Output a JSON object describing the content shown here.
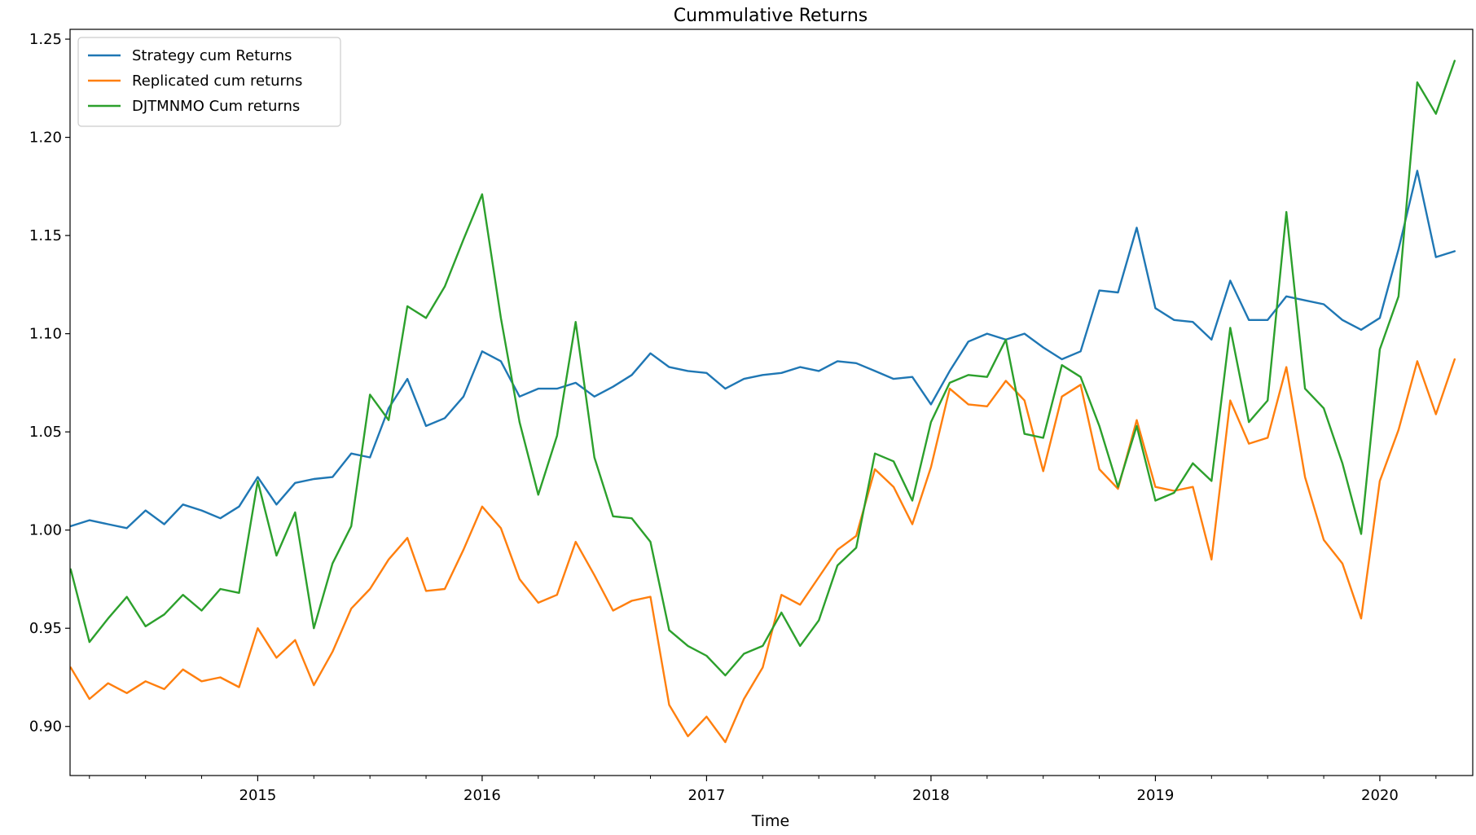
{
  "chart_data": {
    "type": "line",
    "title": "Cummulative Returns",
    "xlabel": "Time",
    "ylabel": "",
    "ylim": [
      0.875,
      1.255
    ],
    "xlim": [
      "2014-02-28",
      "2020-05-31"
    ],
    "yticks": [
      "0.90",
      "0.95",
      "1.00",
      "1.05",
      "1.10",
      "1.15",
      "1.20",
      "1.25"
    ],
    "xticks": [
      "2015",
      "2016",
      "2017",
      "2018",
      "2019",
      "2020"
    ],
    "grid": false,
    "legend_position": "top-left",
    "x": [
      "2014-02",
      "2014-03",
      "2014-04",
      "2014-05",
      "2014-06",
      "2014-07",
      "2014-08",
      "2014-09",
      "2014-10",
      "2014-11",
      "2014-12",
      "2015-01",
      "2015-02",
      "2015-03",
      "2015-04",
      "2015-05",
      "2015-06",
      "2015-07",
      "2015-08",
      "2015-09",
      "2015-10",
      "2015-11",
      "2015-12",
      "2016-01",
      "2016-02",
      "2016-03",
      "2016-04",
      "2016-05",
      "2016-06",
      "2016-07",
      "2016-08",
      "2016-09",
      "2016-10",
      "2016-11",
      "2016-12",
      "2017-01",
      "2017-02",
      "2017-03",
      "2017-04",
      "2017-05",
      "2017-06",
      "2017-07",
      "2017-08",
      "2017-09",
      "2017-10",
      "2017-11",
      "2017-12",
      "2018-01",
      "2018-02",
      "2018-03",
      "2018-04",
      "2018-05",
      "2018-06",
      "2018-07",
      "2018-08",
      "2018-09",
      "2018-10",
      "2018-11",
      "2018-12",
      "2019-01",
      "2019-02",
      "2019-03",
      "2019-04",
      "2019-05",
      "2019-06",
      "2019-07",
      "2019-08",
      "2019-09",
      "2019-10",
      "2019-11",
      "2019-12",
      "2020-01",
      "2020-02",
      "2020-03",
      "2020-04"
    ],
    "series": [
      {
        "name": "Strategy cum Returns",
        "color": "#1f77b4",
        "values": [
          1.002,
          1.005,
          1.003,
          1.001,
          1.01,
          1.003,
          1.013,
          1.01,
          1.006,
          1.012,
          1.027,
          1.013,
          1.024,
          1.026,
          1.027,
          1.039,
          1.037,
          1.062,
          1.077,
          1.053,
          1.057,
          1.068,
          1.091,
          1.086,
          1.068,
          1.072,
          1.072,
          1.075,
          1.068,
          1.073,
          1.079,
          1.09,
          1.083,
          1.081,
          1.08,
          1.072,
          1.077,
          1.079,
          1.08,
          1.083,
          1.081,
          1.086,
          1.085,
          1.081,
          1.077,
          1.078,
          1.064,
          1.081,
          1.096,
          1.1,
          1.097,
          1.1,
          1.093,
          1.087,
          1.091,
          1.122,
          1.121,
          1.154,
          1.113,
          1.107,
          1.106,
          1.097,
          1.127,
          1.107,
          1.107,
          1.119,
          1.117,
          1.115,
          1.107,
          1.102,
          1.108,
          1.143,
          1.183,
          1.139,
          1.142
        ]
      },
      {
        "name": "Replicated cum returns",
        "color": "#ff7f0e",
        "values": [
          0.93,
          0.914,
          0.922,
          0.917,
          0.923,
          0.919,
          0.929,
          0.923,
          0.925,
          0.92,
          0.95,
          0.935,
          0.944,
          0.921,
          0.938,
          0.96,
          0.97,
          0.985,
          0.996,
          0.969,
          0.97,
          0.99,
          1.012,
          1.001,
          0.975,
          0.963,
          0.967,
          0.994,
          0.977,
          0.959,
          0.964,
          0.966,
          0.911,
          0.895,
          0.905,
          0.892,
          0.914,
          0.93,
          0.967,
          0.962,
          0.976,
          0.99,
          0.997,
          1.031,
          1.022,
          1.003,
          1.032,
          1.072,
          1.064,
          1.063,
          1.076,
          1.066,
          1.03,
          1.068,
          1.074,
          1.031,
          1.021,
          1.056,
          1.022,
          1.02,
          1.022,
          0.985,
          1.066,
          1.044,
          1.047,
          1.083,
          1.027,
          0.995,
          0.983,
          0.955,
          1.025,
          1.051,
          1.086,
          1.059,
          1.087
        ]
      },
      {
        "name": "DJTMNMO Cum returns",
        "color": "#2ca02c",
        "values": [
          0.98,
          0.943,
          0.955,
          0.966,
          0.951,
          0.957,
          0.967,
          0.959,
          0.97,
          0.968,
          1.025,
          0.987,
          1.009,
          0.95,
          0.983,
          1.002,
          1.069,
          1.056,
          1.114,
          1.108,
          1.124,
          1.148,
          1.171,
          1.108,
          1.055,
          1.018,
          1.048,
          1.106,
          1.037,
          1.007,
          1.006,
          0.994,
          0.949,
          0.941,
          0.936,
          0.926,
          0.937,
          0.941,
          0.958,
          0.941,
          0.954,
          0.982,
          0.991,
          1.039,
          1.035,
          1.015,
          1.055,
          1.075,
          1.079,
          1.078,
          1.097,
          1.049,
          1.047,
          1.084,
          1.078,
          1.053,
          1.022,
          1.053,
          1.015,
          1.019,
          1.034,
          1.025,
          1.103,
          1.055,
          1.066,
          1.162,
          1.072,
          1.062,
          1.034,
          0.998,
          1.092,
          1.119,
          1.228,
          1.212,
          1.239
        ]
      }
    ]
  }
}
